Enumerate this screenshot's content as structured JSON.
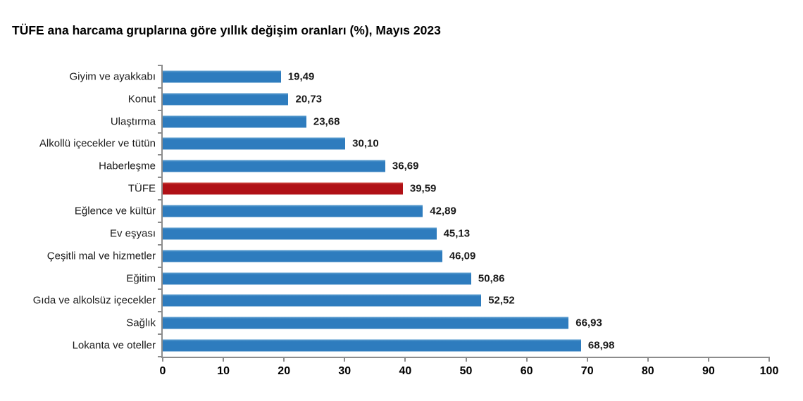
{
  "header": {
    "title": "TÜFE ana harcama gruplarına göre yıllık değişim oranları (%), Mayıs 2023"
  },
  "colors": {
    "bar": "#2e7cbe",
    "bar_top_edge": "#5f9fd0",
    "highlight_bar": "#b01116",
    "highlight_top_edge": "#cf4a42",
    "axis": "#8c8c8c",
    "text": "#1a1a1a",
    "background": "#ffffff"
  },
  "chart_data": {
    "type": "bar",
    "orientation": "horizontal",
    "title": "TÜFE ana harcama gruplarına göre yıllık değişim oranları (%), Mayıs 2023",
    "categories": [
      "Giyim ve ayakkabı",
      "Konut",
      "Ulaştırma",
      "Alkollü içecekler ve tütün",
      "Haberleşme",
      "TÜFE",
      "Eğlence ve kültür",
      "Ev eşyası",
      "Çeşitli mal ve hizmetler",
      "Eğitim",
      "Gıda ve alkolsüz içecekler",
      "Sağlık",
      "Lokanta ve oteller"
    ],
    "values": [
      19.49,
      20.73,
      23.68,
      30.1,
      36.69,
      39.59,
      42.89,
      45.13,
      46.09,
      50.86,
      52.52,
      66.93,
      68.98
    ],
    "value_labels": [
      "19,49",
      "20,73",
      "23,68",
      "30,10",
      "36,69",
      "39,59",
      "42,89",
      "45,13",
      "46,09",
      "50,86",
      "52,52",
      "66,93",
      "68,98"
    ],
    "highlight_index": 5,
    "highlight_category": "TÜFE",
    "xlabel": "",
    "ylabel": "",
    "xlim": [
      0,
      100
    ],
    "x_ticks": [
      0,
      10,
      20,
      30,
      40,
      50,
      60,
      70,
      80,
      90,
      100
    ],
    "grid": false,
    "legend": false
  }
}
